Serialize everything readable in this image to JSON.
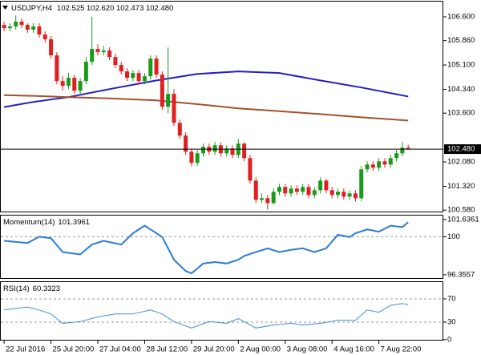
{
  "chart_data": [
    {
      "type": "candlestick",
      "title": "USDJPY,H4",
      "subtitle": "102.525 102.620 102.473 102.480",
      "up_color": "#1a9a1a",
      "down_color": "#e02020",
      "xlim": [
        -0.7,
        75
      ],
      "ylim": [
        100.51,
        107.1
      ],
      "yticks": [
        {
          "value": 106.6,
          "label": "106.600"
        },
        {
          "value": 105.86,
          "label": "105.860"
        },
        {
          "value": 105.1,
          "label": "105.100"
        },
        {
          "value": 104.34,
          "label": "104.340"
        },
        {
          "value": 103.6,
          "label": "103.600"
        },
        {
          "value": 102.08,
          "label": "102.080"
        },
        {
          "value": 101.32,
          "label": "101.320"
        },
        {
          "value": 100.58,
          "label": "100.580"
        }
      ],
      "last_price": {
        "value": 102.48,
        "label": "102.480"
      },
      "open": [
        106.35,
        106.25,
        106.3,
        106.45,
        106.35,
        106.2,
        106.3,
        106.05,
        105.9,
        105.4,
        104.6,
        104.45,
        104.7,
        104.3,
        104.6,
        105.2,
        105.6,
        105.5,
        105.55,
        105.35,
        105.1,
        104.9,
        104.7,
        104.85,
        104.6,
        104.75,
        105.3,
        104.8,
        103.8,
        104.2,
        103.3,
        102.9,
        102.4,
        102.05,
        102.35,
        102.55,
        102.4,
        102.6,
        102.35,
        102.5,
        102.3,
        102.65,
        102.2,
        101.5,
        100.9,
        100.95,
        100.8,
        101.15,
        101.3,
        101.1,
        101.25,
        101.15,
        101.3,
        101.05,
        101.2,
        101.5,
        101.2,
        101.05,
        101.15,
        101.0,
        101.1,
        100.95,
        101.85,
        102.0,
        101.9,
        102.1,
        102.0,
        102.2,
        102.35,
        102.525
      ],
      "high": [
        106.45,
        106.4,
        106.65,
        106.55,
        106.4,
        106.4,
        106.4,
        106.15,
        106.0,
        105.5,
        104.75,
        104.85,
        104.8,
        104.7,
        105.35,
        106.6,
        105.75,
        105.7,
        105.65,
        105.45,
        105.2,
        105.0,
        104.95,
        104.95,
        104.85,
        105.4,
        105.4,
        104.9,
        105.65,
        104.35,
        103.4,
        103.0,
        102.5,
        102.45,
        102.65,
        102.65,
        102.7,
        102.7,
        102.6,
        102.6,
        102.8,
        102.7,
        102.3,
        101.6,
        101.1,
        101.05,
        101.25,
        101.4,
        101.4,
        101.35,
        101.35,
        101.4,
        101.4,
        101.3,
        101.6,
        101.55,
        101.3,
        101.25,
        101.25,
        101.2,
        101.2,
        101.95,
        102.1,
        102.1,
        102.2,
        102.2,
        102.3,
        102.45,
        102.7,
        102.62
      ],
      "low": [
        106.15,
        106.15,
        106.2,
        106.25,
        106.1,
        106.1,
        105.95,
        105.8,
        105.3,
        104.5,
        104.3,
        104.35,
        104.2,
        104.2,
        104.5,
        105.1,
        105.4,
        105.4,
        105.25,
        105.0,
        104.8,
        104.6,
        104.6,
        104.5,
        104.5,
        104.65,
        104.7,
        103.7,
        103.6,
        103.2,
        102.8,
        102.3,
        101.95,
        101.95,
        102.25,
        102.3,
        102.3,
        102.25,
        102.25,
        102.2,
        102.2,
        102.1,
        101.4,
        100.8,
        100.8,
        100.6,
        100.75,
        101.05,
        101.0,
        101.0,
        101.05,
        101.05,
        100.95,
        100.95,
        101.1,
        101.1,
        100.95,
        100.95,
        100.9,
        100.9,
        100.85,
        100.85,
        101.75,
        101.8,
        101.8,
        101.9,
        101.9,
        102.1,
        102.25,
        102.473
      ],
      "close": [
        106.25,
        106.3,
        106.45,
        106.35,
        106.2,
        106.3,
        106.05,
        105.9,
        105.4,
        104.6,
        104.45,
        104.7,
        104.3,
        104.6,
        105.2,
        105.6,
        105.5,
        105.55,
        105.35,
        105.1,
        104.9,
        104.7,
        104.85,
        104.6,
        104.75,
        105.3,
        104.8,
        103.8,
        104.2,
        103.3,
        102.9,
        102.4,
        102.05,
        102.35,
        102.55,
        102.4,
        102.6,
        102.35,
        102.5,
        102.3,
        102.65,
        102.2,
        101.5,
        100.9,
        100.95,
        100.8,
        101.15,
        101.3,
        101.1,
        101.25,
        101.15,
        101.3,
        101.05,
        101.2,
        101.5,
        101.2,
        101.05,
        101.15,
        101.0,
        101.1,
        100.95,
        101.85,
        102.0,
        101.9,
        102.1,
        102.0,
        102.2,
        102.35,
        102.525,
        102.48
      ],
      "lines": [
        {
          "color": "#2020c0",
          "x": [
            0,
            5,
            11,
            18,
            26,
            33,
            40,
            47,
            54,
            61,
            69
          ],
          "values": [
            103.79,
            103.95,
            104.1,
            104.35,
            104.62,
            104.82,
            104.9,
            104.85,
            104.62,
            104.4,
            104.12
          ]
        },
        {
          "color": "#a0522d",
          "x": [
            0,
            5,
            11,
            18,
            26,
            33,
            40,
            47,
            54,
            61,
            69
          ],
          "values": [
            104.16,
            104.14,
            104.1,
            104.06,
            104.0,
            103.88,
            103.75,
            103.66,
            103.57,
            103.47,
            103.37
          ]
        }
      ]
    },
    {
      "type": "line",
      "title": "Momentum(14)",
      "color": "#2b7bd6",
      "line_width": 2,
      "xlim": [
        -0.7,
        75
      ],
      "ylim": [
        95.97,
        102.1
      ],
      "yticks": [
        101.6361,
        100,
        96.3557
      ],
      "levels": [
        100
      ],
      "x": [
        0,
        4,
        6,
        8,
        10,
        13,
        15,
        17,
        20,
        22,
        24,
        25,
        27,
        29,
        31,
        32,
        34,
        36,
        38,
        40,
        41,
        43,
        45,
        47,
        49,
        51,
        53,
        55,
        57,
        59,
        60,
        62,
        64,
        66,
        68,
        69
      ],
      "values": [
        99.61,
        99.4,
        100.0,
        99.86,
        98.53,
        98.31,
        99.25,
        99.61,
        99.25,
        100.34,
        101.06,
        100.7,
        99.97,
        97.8,
        96.72,
        96.5,
        97.44,
        97.58,
        97.44,
        97.8,
        98.16,
        98.53,
        98.89,
        98.53,
        98.75,
        98.89,
        98.53,
        98.89,
        100.19,
        99.97,
        100.34,
        100.7,
        100.48,
        101.06,
        100.92,
        101.3961
      ]
    },
    {
      "type": "line",
      "title": "RSI(14)",
      "color": "#3d8fd9",
      "line_width": 1,
      "xlim": [
        -0.7,
        75
      ],
      "ylim": [
        -1.7,
        100.3
      ],
      "yticks": [
        70,
        30,
        0
      ],
      "levels": [
        70,
        30
      ],
      "x": [
        0,
        4,
        6,
        8,
        10,
        13,
        16,
        19,
        22,
        25,
        27,
        29,
        32,
        35,
        38,
        40,
        43,
        46,
        49,
        51,
        54,
        57,
        60,
        62,
        64,
        66,
        68,
        69
      ],
      "values": [
        51,
        56,
        51,
        44,
        28,
        31,
        39,
        44,
        44,
        51,
        44,
        31,
        20,
        31,
        28,
        36,
        20,
        25,
        28,
        25,
        28,
        33,
        33,
        51,
        47,
        59,
        62,
        60.3323
      ],
      "xticks": [
        {
          "value": 0,
          "label": "22 Jul 2016"
        },
        {
          "value": 8,
          "label": "25 Jul 20:00"
        },
        {
          "value": 16,
          "label": "27 Jul 04:00"
        },
        {
          "value": 24,
          "label": "28 Jul 12:00"
        },
        {
          "value": 32,
          "label": "29 Jul 20:00"
        },
        {
          "value": 40,
          "label": "2 Aug 00:00"
        },
        {
          "value": 48,
          "label": "3 Aug 08:00"
        },
        {
          "value": 56,
          "label": "4 Aug 16:00"
        },
        {
          "value": 64,
          "label": "7 Aug 22:00"
        }
      ]
    }
  ]
}
